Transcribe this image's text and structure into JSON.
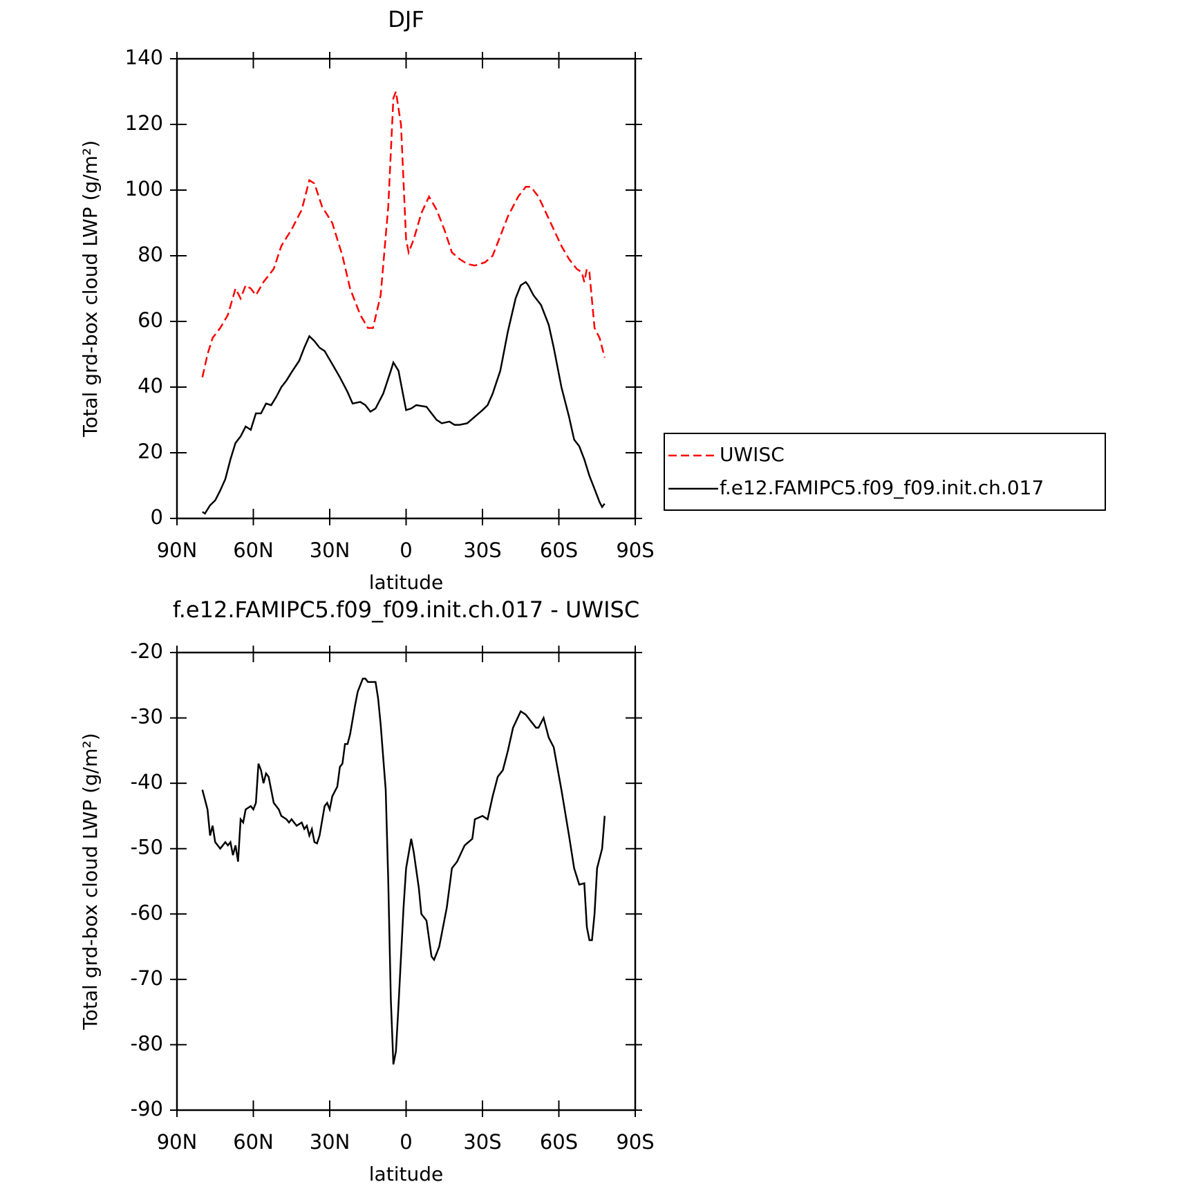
{
  "chart_data": [
    {
      "type": "line",
      "title": "DJF",
      "xlabel": "latitude",
      "ylabel": "Total grd-box cloud LWP (g/m²)",
      "xlim": [
        90,
        -90
      ],
      "xticks": [
        {
          "value": 90,
          "label": "90N"
        },
        {
          "value": 60,
          "label": "60N"
        },
        {
          "value": 30,
          "label": "30N"
        },
        0,
        {
          "value": -30,
          "label": "30S"
        },
        {
          "value": -60,
          "label": "60S"
        },
        {
          "value": -90,
          "label": "90S"
        }
      ],
      "ylim": [
        0,
        140
      ],
      "yticks": [
        0,
        20,
        40,
        60,
        80,
        100,
        120,
        140
      ],
      "legend": "right",
      "series": [
        {
          "name": "UWISC",
          "color": "#ff0000",
          "linestyle": "dashed",
          "x": [
            80,
            78,
            76,
            73,
            70,
            67,
            65,
            63,
            61,
            59,
            56,
            52,
            49,
            45,
            41,
            38,
            36,
            33,
            29,
            25,
            22,
            18,
            15,
            13,
            10,
            7,
            5,
            4,
            2,
            0,
            -1,
            -3,
            -6,
            -9,
            -12,
            -15,
            -18,
            -21,
            -24,
            -27,
            -31,
            -34,
            -36,
            -40,
            -44,
            -47,
            -49,
            -52,
            -55,
            -58,
            -61,
            -64,
            -67,
            -69,
            -70,
            -71,
            -72,
            -74,
            -76,
            -78
          ],
          "values": [
            43,
            50,
            55,
            58,
            62,
            70,
            67,
            71,
            70,
            68,
            72,
            76,
            83,
            88,
            94,
            103,
            102,
            95,
            90,
            80,
            70,
            62,
            58,
            58,
            68,
            95,
            128,
            130,
            120,
            85,
            81,
            85,
            93,
            98,
            94,
            88,
            81,
            79,
            77.5,
            77,
            78,
            80,
            84,
            92,
            98,
            101,
            101,
            98,
            93,
            88,
            83,
            79,
            76,
            75,
            72,
            76,
            75,
            58,
            55,
            49
          ]
        },
        {
          "name": "f.e12.FAMIPC5.f09_f09.init.ch.017",
          "color": "#000000",
          "linestyle": "solid",
          "x": [
            80,
            79,
            77,
            75,
            73,
            71,
            69,
            67,
            65,
            63,
            61,
            59,
            57,
            55,
            53,
            51,
            49,
            47,
            45,
            42,
            40,
            38,
            36,
            34,
            32,
            29,
            26,
            23,
            21,
            18,
            16,
            14,
            12,
            9,
            6,
            5,
            3,
            1,
            0,
            -2,
            -4,
            -8,
            -10,
            -12,
            -14,
            -17,
            -19,
            -21,
            -24,
            -27,
            -30,
            -32,
            -34,
            -37,
            -40,
            -43,
            -45,
            -47,
            -48,
            -50,
            -53,
            -56,
            -58,
            -61,
            -64,
            -66,
            -68,
            -70,
            -72,
            -74,
            -76,
            -77,
            -78
          ],
          "values": [
            2,
            1.5,
            4,
            5.5,
            8.5,
            12,
            18,
            23,
            25,
            28,
            27,
            32,
            32,
            35,
            34.5,
            37,
            40,
            42,
            44.5,
            48,
            52,
            55.5,
            54,
            52,
            51,
            47,
            43,
            38.5,
            35,
            35.5,
            34.5,
            32.5,
            33.5,
            38,
            45,
            47.5,
            45,
            37,
            33,
            33.5,
            34.5,
            34,
            32,
            30,
            29,
            29.5,
            28.5,
            28.5,
            29,
            31,
            33,
            34.5,
            38,
            45,
            57,
            67,
            71,
            72,
            71,
            68,
            65,
            59,
            52,
            40,
            31,
            24,
            22,
            18,
            13,
            9,
            5,
            3.5,
            4.5
          ]
        }
      ]
    },
    {
      "type": "line",
      "title": "f.e12.FAMIPC5.f09_f09.init.ch.017 - UWISC",
      "xlabel": "latitude",
      "ylabel": "Total grd-box cloud LWP (g/m²)",
      "xlim": [
        90,
        -90
      ],
      "xticks": [
        {
          "value": 90,
          "label": "90N"
        },
        {
          "value": 60,
          "label": "60N"
        },
        {
          "value": 30,
          "label": "30N"
        },
        0,
        {
          "value": -30,
          "label": "30S"
        },
        {
          "value": -60,
          "label": "60S"
        },
        {
          "value": -90,
          "label": "90S"
        }
      ],
      "ylim": [
        -90,
        -20
      ],
      "yticks": [
        -90,
        -80,
        -70,
        -60,
        -50,
        -40,
        -30,
        -20
      ],
      "series": [
        {
          "color": "#000000",
          "linestyle": "solid",
          "x": [
            80,
            78,
            77,
            76,
            75,
            73,
            71,
            70,
            69,
            68,
            67,
            66,
            65,
            64,
            63,
            61,
            60,
            59,
            58,
            57,
            56,
            55,
            54,
            53,
            52,
            50,
            49,
            47,
            46,
            45,
            43,
            41,
            40,
            39,
            38,
            37,
            36,
            35,
            34,
            32,
            31,
            30,
            29,
            27,
            26,
            25,
            24,
            23,
            22,
            20,
            19,
            17,
            16,
            15,
            14,
            12,
            11,
            10,
            8,
            7,
            6,
            5,
            4,
            3,
            1,
            0,
            -2,
            -3,
            -5,
            -6,
            -8,
            -10,
            -11,
            -13,
            -16,
            -18,
            -20,
            -23,
            -26,
            -27,
            -30,
            -32,
            -34,
            -36,
            -38,
            -40,
            -42,
            -45,
            -47,
            -49,
            -51,
            -52,
            -54,
            -56,
            -58,
            -61,
            -64,
            -66,
            -68,
            -70,
            -71,
            -72,
            -73,
            -74,
            -75,
            -77,
            -78
          ],
          "values": [
            -41,
            -44,
            -48,
            -46.5,
            -49,
            -50,
            -49,
            -49.5,
            -49,
            -51,
            -49.5,
            -52,
            -45.5,
            -46,
            -44,
            -43.5,
            -44,
            -43,
            -37,
            -38,
            -40,
            -38.5,
            -39,
            -41,
            -43,
            -44,
            -45,
            -45.5,
            -46,
            -45.5,
            -46.5,
            -46,
            -47,
            -46.5,
            -48,
            -47,
            -49,
            -49.2,
            -48,
            -43.5,
            -43,
            -44,
            -42,
            -40.5,
            -37.5,
            -37,
            -34,
            -34,
            -32.5,
            -28,
            -26,
            -24,
            -24,
            -24.5,
            -24.5,
            -24.5,
            -27,
            -31,
            -41,
            -55,
            -73,
            -83,
            -81,
            -74,
            -59,
            -53,
            -48.5,
            -50.5,
            -56,
            -60,
            -61,
            -66.5,
            -67,
            -65,
            -59,
            -53,
            -52,
            -49.5,
            -48.5,
            -45.5,
            -45,
            -45.5,
            -42,
            -39,
            -38,
            -35,
            -31.5,
            -29,
            -29.5,
            -30.5,
            -31.5,
            -31.5,
            -30,
            -33,
            -34.5,
            -41,
            -48,
            -53,
            -55.5,
            -55.3,
            -62,
            -64,
            -64,
            -60,
            -53,
            -50,
            -45
          ]
        }
      ]
    }
  ]
}
